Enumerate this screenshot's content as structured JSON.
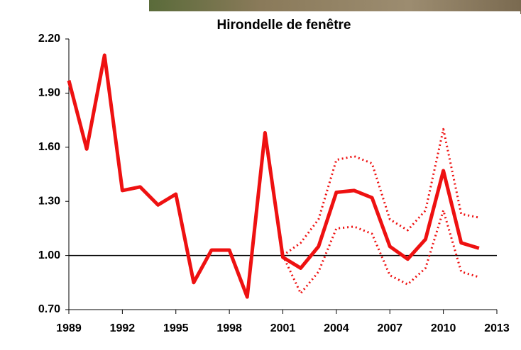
{
  "chart_data": {
    "type": "line",
    "title": "Hirondelle de fenêtre",
    "x": [
      1989,
      1990,
      1991,
      1992,
      1993,
      1994,
      1995,
      1996,
      1997,
      1998,
      1999,
      2000,
      2001,
      2002,
      2003,
      2004,
      2005,
      2006,
      2007,
      2008,
      2009,
      2010,
      2011,
      2012
    ],
    "series": [
      {
        "color": "#ee1111",
        "style": "solid",
        "width": 5,
        "values": [
          1.97,
          1.59,
          2.11,
          1.36,
          1.38,
          1.28,
          1.34,
          0.85,
          1.03,
          1.03,
          0.77,
          1.68,
          0.99,
          0.93,
          1.05,
          1.35,
          1.36,
          1.32,
          1.05,
          0.98,
          1.09,
          1.47,
          1.07,
          1.04
        ]
      },
      {
        "color": "#ee1111",
        "style": "dotted",
        "width": 3,
        "values": [
          null,
          null,
          null,
          null,
          null,
          null,
          null,
          null,
          null,
          null,
          null,
          null,
          1.0,
          1.07,
          1.2,
          1.53,
          1.55,
          1.51,
          1.2,
          1.14,
          1.25,
          1.7,
          1.23,
          1.21
        ]
      },
      {
        "color": "#ee1111",
        "style": "dotted",
        "width": 3,
        "values": [
          null,
          null,
          null,
          null,
          null,
          null,
          null,
          null,
          null,
          null,
          null,
          null,
          1.0,
          0.79,
          0.91,
          1.15,
          1.16,
          1.12,
          0.89,
          0.84,
          0.93,
          1.25,
          0.91,
          0.88
        ]
      }
    ],
    "reference_line": 1.0,
    "xlim": [
      1989,
      2013
    ],
    "xticks": [
      1989,
      1992,
      1995,
      1998,
      2001,
      2004,
      2007,
      2010,
      2013
    ],
    "ylim": [
      0.7,
      2.2
    ],
    "yticks": [
      {
        "value": 0.7,
        "label": "0.70"
      },
      {
        "value": 1.0,
        "label": "1.00"
      },
      {
        "value": 1.3,
        "label": "1.30"
      },
      {
        "value": 1.6,
        "label": "1.60"
      },
      {
        "value": 1.9,
        "label": "1.90"
      },
      {
        "value": 2.2,
        "label": "2.20"
      }
    ]
  }
}
